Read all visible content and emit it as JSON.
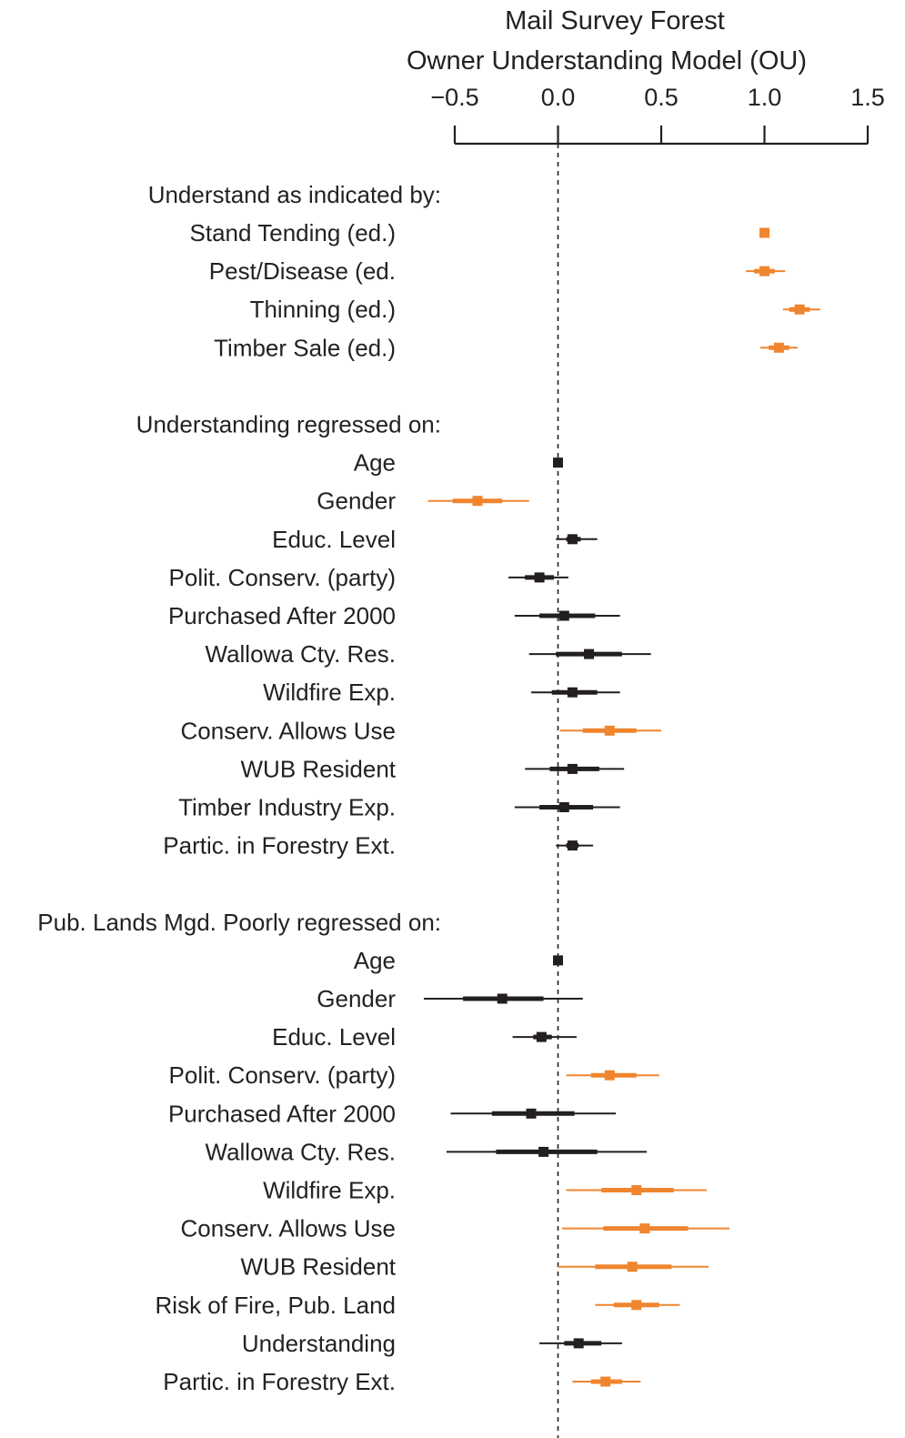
{
  "chart_data": {
    "type": "forest",
    "title": "Mail Survey Forest",
    "subtitle": "Owner Understanding Model (OU)",
    "xlim": [
      -0.5,
      1.5
    ],
    "ticks": [
      -0.5,
      0.0,
      0.5,
      1.0,
      1.5
    ],
    "tick_labels": [
      "−0.5",
      "0.0",
      "0.5",
      "1.0",
      "1.5"
    ],
    "reference_line": 0,
    "colors": {
      "significant": "#f0852f",
      "nonsignificant": "#231f20",
      "text": "#222222"
    },
    "sections": [
      {
        "header": "Understand as indicated by:",
        "rows": [
          {
            "label": "Stand Tending (ed.)",
            "estimate": 1.0,
            "ci50": [
              0.99,
              1.01
            ],
            "ci95": [
              0.99,
              1.01
            ],
            "significant": true
          },
          {
            "label": "Pest/Disease (ed.",
            "estimate": 1.0,
            "ci50": [
              0.95,
              1.05
            ],
            "ci95": [
              0.91,
              1.1
            ],
            "significant": true
          },
          {
            "label": "Thinning (ed.)",
            "estimate": 1.17,
            "ci50": [
              1.12,
              1.22
            ],
            "ci95": [
              1.09,
              1.27
            ],
            "significant": true
          },
          {
            "label": "Timber Sale (ed.)",
            "estimate": 1.07,
            "ci50": [
              1.02,
              1.12
            ],
            "ci95": [
              0.98,
              1.16
            ],
            "significant": true
          }
        ]
      },
      {
        "header": "Understanding regressed on:",
        "rows": [
          {
            "label": "Age",
            "estimate": 0.0,
            "ci50": [
              -0.01,
              0.01
            ],
            "ci95": [
              -0.01,
              0.01
            ],
            "significant": false
          },
          {
            "label": "Gender",
            "estimate": -0.39,
            "ci50": [
              -0.51,
              -0.27
            ],
            "ci95": [
              -0.63,
              -0.14
            ],
            "significant": true
          },
          {
            "label": "Educ. Level",
            "estimate": 0.07,
            "ci50": [
              0.04,
              0.11
            ],
            "ci95": [
              -0.01,
              0.19
            ],
            "significant": false
          },
          {
            "label": "Polit. Conserv. (party)",
            "estimate": -0.09,
            "ci50": [
              -0.16,
              -0.02
            ],
            "ci95": [
              -0.24,
              0.05
            ],
            "significant": false
          },
          {
            "label": "Purchased After 2000",
            "estimate": 0.03,
            "ci50": [
              -0.09,
              0.18
            ],
            "ci95": [
              -0.21,
              0.3
            ],
            "significant": false
          },
          {
            "label": "Wallowa Cty. Res.",
            "estimate": 0.15,
            "ci50": [
              -0.01,
              0.31
            ],
            "ci95": [
              -0.14,
              0.45
            ],
            "significant": false
          },
          {
            "label": "Wildfire Exp.",
            "estimate": 0.07,
            "ci50": [
              -0.03,
              0.19
            ],
            "ci95": [
              -0.13,
              0.3
            ],
            "significant": false
          },
          {
            "label": "Conserv. Allows Use",
            "estimate": 0.25,
            "ci50": [
              0.12,
              0.38
            ],
            "ci95": [
              0.01,
              0.5
            ],
            "significant": true
          },
          {
            "label": "WUB Resident",
            "estimate": 0.07,
            "ci50": [
              -0.04,
              0.2
            ],
            "ci95": [
              -0.16,
              0.32
            ],
            "significant": false
          },
          {
            "label": "Timber Industry Exp.",
            "estimate": 0.03,
            "ci50": [
              -0.09,
              0.17
            ],
            "ci95": [
              -0.21,
              0.3
            ],
            "significant": false
          },
          {
            "label": "Partic. in Forestry Ext.",
            "estimate": 0.07,
            "ci50": [
              0.04,
              0.1
            ],
            "ci95": [
              -0.01,
              0.17
            ],
            "significant": false
          }
        ]
      },
      {
        "header": "Pub. Lands Mgd. Poorly regressed on:",
        "rows": [
          {
            "label": "Age",
            "estimate": 0.0,
            "ci50": [
              -0.01,
              0.01
            ],
            "ci95": [
              -0.01,
              0.01
            ],
            "significant": false
          },
          {
            "label": "Gender",
            "estimate": -0.27,
            "ci50": [
              -0.46,
              -0.07
            ],
            "ci95": [
              -0.65,
              0.12
            ],
            "significant": false
          },
          {
            "label": "Educ. Level",
            "estimate": -0.08,
            "ci50": [
              -0.12,
              -0.03
            ],
            "ci95": [
              -0.22,
              0.09
            ],
            "significant": false
          },
          {
            "label": "Polit. Conserv. (party)",
            "estimate": 0.25,
            "ci50": [
              0.16,
              0.38
            ],
            "ci95": [
              0.04,
              0.49
            ],
            "significant": true
          },
          {
            "label": "Purchased After 2000",
            "estimate": -0.13,
            "ci50": [
              -0.32,
              0.08
            ],
            "ci95": [
              -0.52,
              0.28
            ],
            "significant": false
          },
          {
            "label": "Wallowa Cty. Res.",
            "estimate": -0.07,
            "ci50": [
              -0.3,
              0.19
            ],
            "ci95": [
              -0.54,
              0.43
            ],
            "significant": false
          },
          {
            "label": "Wildfire Exp.",
            "estimate": 0.38,
            "ci50": [
              0.21,
              0.56
            ],
            "ci95": [
              0.04,
              0.72
            ],
            "significant": true
          },
          {
            "label": "Conserv.  Allows Use",
            "estimate": 0.42,
            "ci50": [
              0.22,
              0.63
            ],
            "ci95": [
              0.02,
              0.83
            ],
            "significant": true
          },
          {
            "label": "WUB Resident",
            "estimate": 0.36,
            "ci50": [
              0.18,
              0.55
            ],
            "ci95": [
              0.0,
              0.73
            ],
            "significant": true
          },
          {
            "label": "Risk of Fire, Pub. Land",
            "estimate": 0.38,
            "ci50": [
              0.27,
              0.49
            ],
            "ci95": [
              0.18,
              0.59
            ],
            "significant": true
          },
          {
            "label": "Understanding",
            "estimate": 0.1,
            "ci50": [
              0.03,
              0.21
            ],
            "ci95": [
              -0.09,
              0.31
            ],
            "significant": false
          },
          {
            "label": "Partic. in Forestry Ext.",
            "estimate": 0.23,
            "ci50": [
              0.16,
              0.31
            ],
            "ci95": [
              0.07,
              0.4
            ],
            "significant": true
          }
        ]
      }
    ]
  }
}
